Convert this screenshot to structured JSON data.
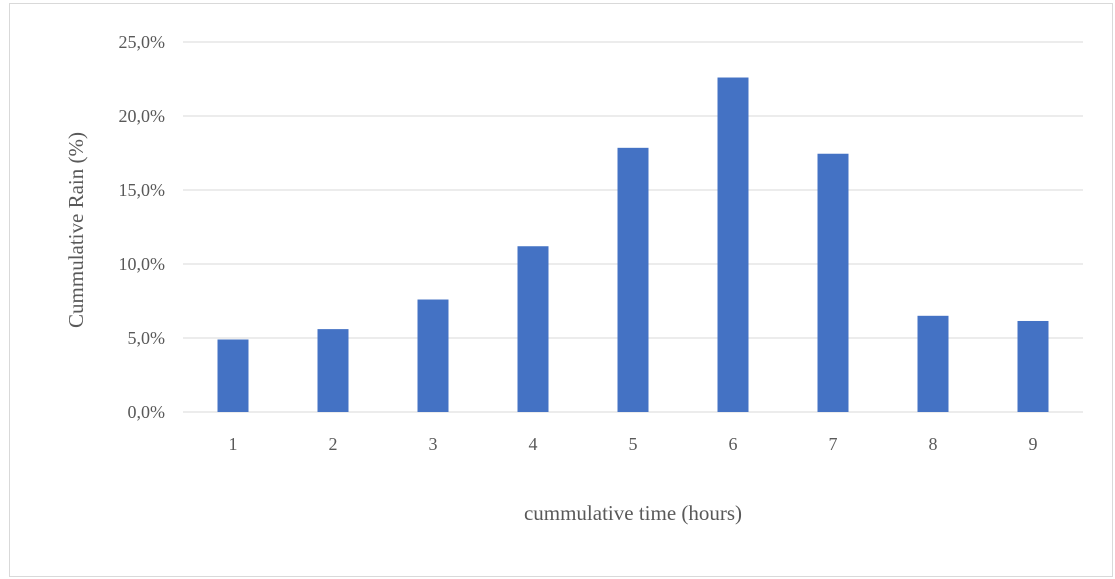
{
  "chart_data": {
    "type": "bar",
    "categories": [
      "1",
      "2",
      "3",
      "4",
      "5",
      "6",
      "7",
      "8",
      "9"
    ],
    "values": [
      4.9,
      5.6,
      7.6,
      11.2,
      17.85,
      22.6,
      17.45,
      6.5,
      6.15
    ],
    "title": "",
    "xlabel": "cummulative time (hours)",
    "ylabel": "Cummulative Rain (%)",
    "ylim": [
      0,
      25
    ],
    "yticks": [
      0,
      5,
      10,
      15,
      20,
      25
    ],
    "ytick_labels": [
      "0,0%",
      "5,0%",
      "10,0%",
      "15,0%",
      "20,0%",
      "25,0%"
    ],
    "grid": true,
    "legend": "none",
    "colors": {
      "bar": "#4472c4",
      "grid": "#d9d9d9",
      "text": "#595959"
    }
  }
}
